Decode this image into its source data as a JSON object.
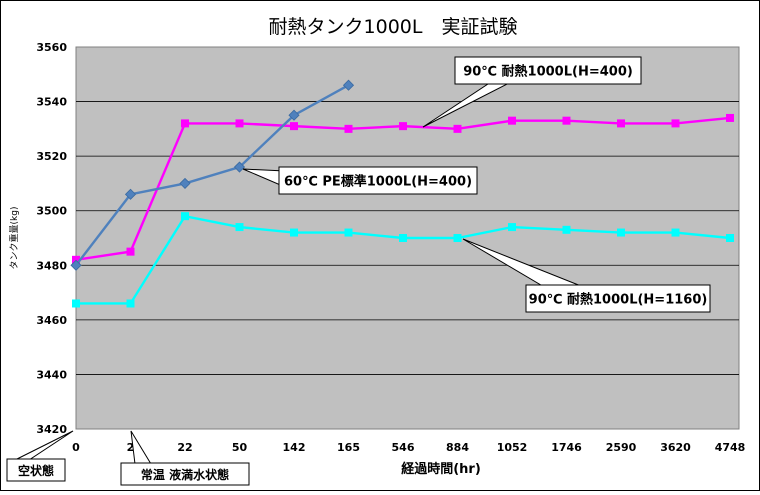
{
  "chart_data": {
    "type": "line",
    "title": "耐熱タンク1000L　実証試験",
    "xlabel": "経過時間(hr)",
    "ylabel": "タンク重量(kg)",
    "categories": [
      "0",
      "2",
      "22",
      "50",
      "142",
      "165",
      "546",
      "884",
      "1052",
      "1746",
      "2590",
      "3620",
      "4748"
    ],
    "yticks": [
      3420,
      3440,
      3460,
      3480,
      3500,
      3520,
      3540,
      3560
    ],
    "ylim": [
      3420,
      3560
    ],
    "grid": true,
    "series": [
      {
        "name": "90℃ 耐熱1000L(H=400)",
        "color": "#ff00ff",
        "marker": "square",
        "values": [
          3482,
          3485,
          3532,
          3532,
          3531,
          3530,
          3531,
          3530,
          3533,
          3533,
          3532,
          3532,
          3534
        ]
      },
      {
        "name": "60℃ PE標準1000L(H=400)",
        "color": "#4f81bd",
        "marker": "diamond",
        "values": [
          3480,
          3506,
          3510,
          3516,
          3535,
          3546,
          null,
          null,
          null,
          null,
          null,
          null,
          null
        ]
      },
      {
        "name": "90℃ 耐熱1000L(H=1160)",
        "color": "#00ffff",
        "marker": "square",
        "values": [
          3466,
          3466,
          3498,
          3494,
          3492,
          3492,
          3490,
          3490,
          3494,
          3493,
          3492,
          3492,
          3490
        ]
      }
    ],
    "annotations": [
      "空状態",
      "常温 液満水状態"
    ]
  }
}
